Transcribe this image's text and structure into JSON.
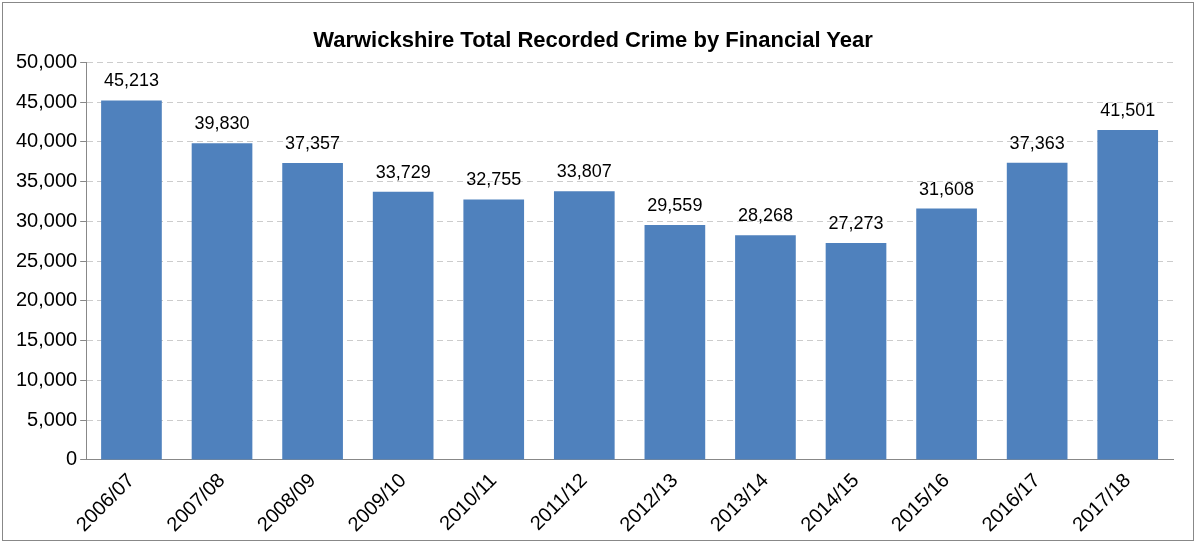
{
  "chart_data": {
    "type": "bar",
    "title": "Warwickshire Total Recorded Crime by Financial Year",
    "categories": [
      "2006/07",
      "2007/08",
      "2008/09",
      "2009/10",
      "2010/11",
      "2011/12",
      "2012/13",
      "2013/14",
      "2014/15",
      "2015/16",
      "2016/17",
      "2017/18"
    ],
    "values": [
      45213,
      39830,
      37357,
      33729,
      32755,
      33807,
      29559,
      28268,
      27273,
      31608,
      37363,
      41501
    ],
    "value_labels": [
      "45,213",
      "39,830",
      "37,357",
      "33,729",
      "32,755",
      "33,807",
      "29,559",
      "28,268",
      "27,273",
      "31,608",
      "37,363",
      "41,501"
    ],
    "color": "#4f81bd",
    "ylim": [
      0,
      50000
    ],
    "yticks": [
      {
        "value": 0,
        "label": "0"
      },
      {
        "value": 5000,
        "label": "5,000"
      },
      {
        "value": 10000,
        "label": "10,000"
      },
      {
        "value": 15000,
        "label": "15,000"
      },
      {
        "value": 20000,
        "label": "20,000"
      },
      {
        "value": 25000,
        "label": "25,000"
      },
      {
        "value": 30000,
        "label": "30,000"
      },
      {
        "value": 35000,
        "label": "35,000"
      },
      {
        "value": 40000,
        "label": "40,000"
      },
      {
        "value": 45000,
        "label": "45,000"
      },
      {
        "value": 50000,
        "label": "50,000"
      }
    ],
    "grid": "y",
    "legend": false
  }
}
